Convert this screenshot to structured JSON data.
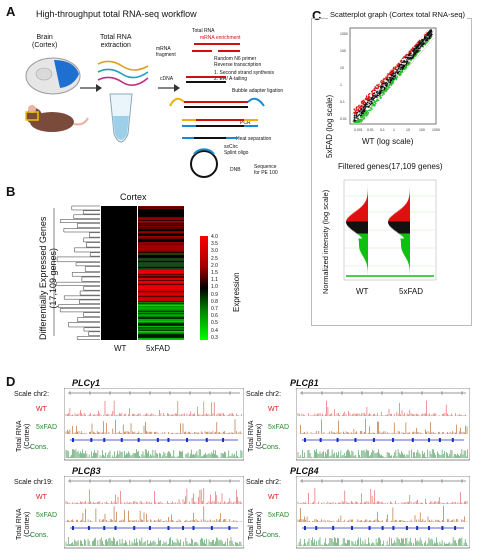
{
  "panel_labels": {
    "a": "A",
    "b": "B",
    "c": "C",
    "d": "D"
  },
  "panel_a": {
    "title": "High-throughput total RNA-seq workflow",
    "brain_label": "Brain\n(Cortex)",
    "extraction_label": "Total RNA\nextraction",
    "steps": {
      "total_rna": "Total RNA",
      "mrna_enrichment": "mRNA enrichment",
      "mrna_fragment": "mRNA\nfragment",
      "random_primer": "Random N6 primer\nReverse transcription",
      "second_strand": "1. Second strand synthesis\n2. ER/ A-tailing",
      "cdna": "cDNA",
      "bubble": "Bubble adapter ligation",
      "pcr": "PCR",
      "heat": "Heat separation",
      "sscirc": "ssCirc\nSplint oligo",
      "dnb": "DNB",
      "sequence": "Sequence\nfor PE 100"
    },
    "colors": {
      "brain_region": "#1f6fd1",
      "mouse": "#7a4a3a",
      "tube": "#9ecfe8"
    }
  },
  "panel_b": {
    "title": "Cortex",
    "ylabel": "Differentially Expressed Genes\n(17,109 genes)",
    "columns": [
      "WT",
      "5xFAD"
    ],
    "colorbar_label": "Expression",
    "colorbar_ticks": [
      "4.0",
      "3.5",
      "3.0",
      "2.5",
      "2.0",
      "1.5",
      "1.1",
      "1.0",
      "0.9",
      "0.8",
      "0.7",
      "0.6",
      "0.5",
      "0.4",
      "0.3"
    ],
    "colors": {
      "high": "#ff0000",
      "mid": "#000000",
      "low": "#00ff00"
    }
  },
  "panel_c": {
    "scatter_title": "Scatterplot graph (Cortex total RNA-seq)",
    "scatter_xlabel": "WT (log scale)",
    "scatter_ylabel": "5xFAD (log scale)",
    "scatter_xticks": [
      "0.001",
      "0.01",
      "0.1",
      "1",
      "10",
      "100",
      "1000"
    ],
    "scatter_yticks": [
      "0.01",
      "0.1",
      "1",
      "10",
      "100",
      "1000"
    ],
    "violin_title": "Filtered genes(17,109 genes)",
    "violin_ylabel": "Normalized intensity (log scale)",
    "violin_groups": [
      "WT",
      "5xFAD"
    ],
    "colors": {
      "up": "#ff0000",
      "mid": "#000000",
      "down": "#00cc00"
    }
  },
  "panel_d": {
    "tracks": [
      {
        "gene": "PLCγ1",
        "scale": "Scale chr2:",
        "rows": [
          "WT",
          "5xFAD",
          "Cons."
        ],
        "axis_label": "Total RNA\n(Cortex)"
      },
      {
        "gene": "PLCβ1",
        "scale": "Scale chr2:",
        "rows": [
          "WT",
          "5xFAD",
          "Cons."
        ],
        "axis_label": "Total RNA\n(Cortex)"
      },
      {
        "gene": "PLCβ3",
        "scale": "Scale chr19:",
        "rows": [
          "WT",
          "5xFAD",
          "Cons."
        ],
        "axis_label": "Total RNA\n(Cortex)"
      },
      {
        "gene": "PLCβ4",
        "scale": "Scale chr2:",
        "rows": [
          "WT",
          "5xFAD",
          "Cons."
        ],
        "axis_label": "Total RNA\n(Cortex)"
      }
    ],
    "colors": {
      "wt": "#e02020",
      "fad": "#b05a1a",
      "cons": "#1a7a2a",
      "gene_model": "#1a2fbf"
    }
  }
}
